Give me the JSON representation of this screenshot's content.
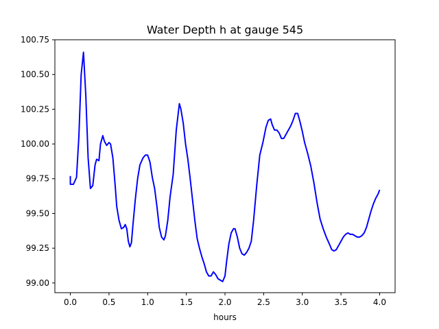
{
  "chart_data": {
    "type": "line",
    "title": "Water Depth h at gauge 545",
    "xlabel": "hours",
    "ylabel": "",
    "xlim": [
      -0.2,
      4.2
    ],
    "ylim": [
      98.93,
      100.75
    ],
    "grid": false,
    "x_ticks": [
      {
        "value": 0.0,
        "label": "0.0"
      },
      {
        "value": 0.5,
        "label": "0.5"
      },
      {
        "value": 1.0,
        "label": "1.0"
      },
      {
        "value": 1.5,
        "label": "1.5"
      },
      {
        "value": 2.0,
        "label": "2.0"
      },
      {
        "value": 2.5,
        "label": "2.5"
      },
      {
        "value": 3.0,
        "label": "3.0"
      },
      {
        "value": 3.5,
        "label": "3.5"
      },
      {
        "value": 4.0,
        "label": "4.0"
      }
    ],
    "y_ticks": [
      {
        "value": 99.0,
        "label": "99.00"
      },
      {
        "value": 99.25,
        "label": "99.25"
      },
      {
        "value": 99.5,
        "label": "99.50"
      },
      {
        "value": 99.75,
        "label": "99.75"
      },
      {
        "value": 100.0,
        "label": "100.00"
      },
      {
        "value": 100.25,
        "label": "100.25"
      },
      {
        "value": 100.5,
        "label": "100.50"
      },
      {
        "value": 100.75,
        "label": "100.75"
      }
    ],
    "series": [
      {
        "color": "#0000ff",
        "x": [
          0.0,
          0.0,
          0.04,
          0.08,
          0.11,
          0.14,
          0.17,
          0.2,
          0.23,
          0.26,
          0.29,
          0.32,
          0.34,
          0.37,
          0.39,
          0.42,
          0.44,
          0.47,
          0.5,
          0.52,
          0.55,
          0.58,
          0.6,
          0.63,
          0.66,
          0.69,
          0.71,
          0.73,
          0.75,
          0.77,
          0.79,
          0.81,
          0.84,
          0.87,
          0.9,
          0.94,
          0.97,
          1.0,
          1.03,
          1.06,
          1.09,
          1.12,
          1.15,
          1.18,
          1.21,
          1.23,
          1.26,
          1.29,
          1.33,
          1.37,
          1.41,
          1.43,
          1.46,
          1.49,
          1.52,
          1.55,
          1.58,
          1.61,
          1.64,
          1.67,
          1.7,
          1.73,
          1.76,
          1.79,
          1.82,
          1.85,
          1.88,
          1.91,
          1.94,
          1.97,
          2.0,
          2.02,
          2.05,
          2.08,
          2.11,
          2.13,
          2.16,
          2.19,
          2.22,
          2.25,
          2.28,
          2.31,
          2.34,
          2.37,
          2.41,
          2.45,
          2.49,
          2.53,
          2.56,
          2.59,
          2.61,
          2.64,
          2.67,
          2.7,
          2.73,
          2.76,
          2.79,
          2.82,
          2.85,
          2.88,
          2.91,
          2.94,
          2.97,
          3.0,
          3.03,
          3.07,
          3.11,
          3.15,
          3.19,
          3.23,
          3.27,
          3.31,
          3.35,
          3.38,
          3.41,
          3.44,
          3.47,
          3.5,
          3.53,
          3.56,
          3.59,
          3.62,
          3.65,
          3.68,
          3.71,
          3.74,
          3.77,
          3.8,
          3.83,
          3.86,
          3.89,
          3.92,
          3.95,
          3.98,
          4.0
        ],
        "y": [
          99.77,
          99.71,
          99.71,
          99.76,
          100.05,
          100.5,
          100.66,
          100.35,
          99.9,
          99.68,
          99.7,
          99.85,
          99.89,
          99.88,
          100.0,
          100.06,
          100.02,
          99.99,
          100.01,
          100.0,
          99.9,
          99.7,
          99.55,
          99.45,
          99.39,
          99.4,
          99.42,
          99.39,
          99.3,
          99.26,
          99.29,
          99.42,
          99.6,
          99.75,
          99.85,
          99.9,
          99.92,
          99.92,
          99.87,
          99.76,
          99.68,
          99.55,
          99.4,
          99.33,
          99.31,
          99.34,
          99.45,
          99.62,
          99.78,
          100.1,
          100.29,
          100.25,
          100.15,
          100.0,
          99.89,
          99.75,
          99.6,
          99.45,
          99.32,
          99.25,
          99.19,
          99.14,
          99.08,
          99.05,
          99.05,
          99.08,
          99.06,
          99.03,
          99.02,
          99.01,
          99.05,
          99.15,
          99.28,
          99.36,
          99.39,
          99.39,
          99.33,
          99.25,
          99.21,
          99.2,
          99.22,
          99.25,
          99.3,
          99.45,
          99.7,
          99.92,
          100.01,
          100.12,
          100.17,
          100.18,
          100.14,
          100.1,
          100.1,
          100.08,
          100.04,
          100.04,
          100.07,
          100.1,
          100.13,
          100.17,
          100.22,
          100.22,
          100.16,
          100.09,
          100.01,
          99.93,
          99.84,
          99.72,
          99.58,
          99.46,
          99.39,
          99.33,
          99.28,
          99.24,
          99.23,
          99.24,
          99.27,
          99.3,
          99.33,
          99.35,
          99.36,
          99.35,
          99.35,
          99.34,
          99.33,
          99.33,
          99.34,
          99.36,
          99.4,
          99.46,
          99.52,
          99.57,
          99.61,
          99.64,
          99.67
        ]
      }
    ]
  }
}
